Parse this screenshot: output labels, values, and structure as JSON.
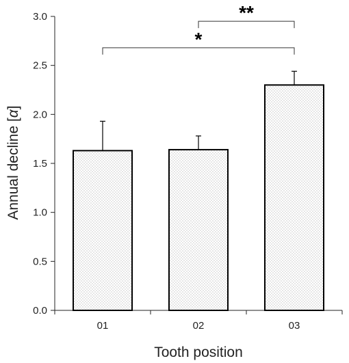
{
  "chart_data": {
    "type": "bar",
    "categories": [
      "01",
      "02",
      "03"
    ],
    "values": [
      1.63,
      1.64,
      2.3
    ],
    "errors": [
      0.3,
      0.14,
      0.14
    ],
    "xlabel": "Tooth position",
    "ylabel_text": "Annual decline [",
    "ylabel_symbol": "α",
    "ylabel_close": "]",
    "ylim": [
      0,
      3.0
    ],
    "yticks": [
      "0.0",
      "0.5",
      "1.0",
      "1.5",
      "2.0",
      "2.5",
      "3.0"
    ],
    "grid": false,
    "bar_fill": "#ffffff",
    "dot_color": "#8a8a8a",
    "significance": [
      {
        "from": 1,
        "to": 2,
        "label": "**"
      },
      {
        "from": 0,
        "to": 2,
        "label": "*"
      }
    ]
  }
}
